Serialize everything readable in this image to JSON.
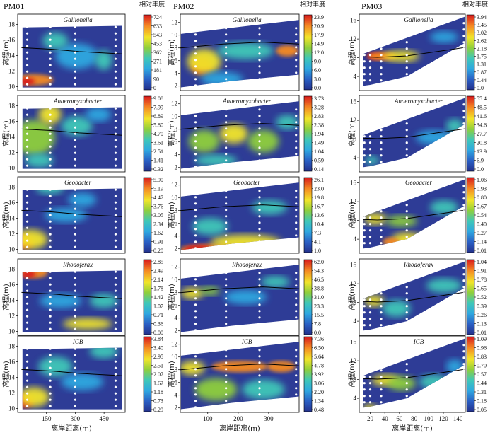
{
  "chart_data": {
    "type": "heatmap",
    "figure": "Contour maps of relative abundance of iron-cycling bacteria along three river-bank profiles",
    "xlabel": "离岸距离(m)",
    "ylabel": "高程(m)",
    "colorbar_title": "相对丰度",
    "colormap": [
      "#24318c",
      "#2a5fc4",
      "#2fa8e0",
      "#3fc7b8",
      "#8fcf3c",
      "#f2e52a",
      "#f58a23",
      "#d7191c"
    ],
    "profiles": [
      {
        "name": "PM01",
        "xlim": [
          0,
          560
        ],
        "xticks": [
          150,
          300,
          450
        ],
        "ylim": [
          9.5,
          19.3
        ],
        "yticks": [
          10,
          12,
          14,
          16,
          18
        ],
        "sampling_columns_x": [
          50,
          170,
          300,
          510
        ],
        "water_table": [
          [
            20,
            15.0
          ],
          [
            180,
            14.8
          ],
          [
            320,
            14.5
          ],
          [
            545,
            14.2
          ]
        ],
        "panels": [
          {
            "species": "Gallionella",
            "colorbar": [
              "724",
              "633",
              "543",
              "453",
              "362",
              "271",
              "181",
              "90",
              "0"
            ]
          },
          {
            "species": "Anaeromyxobacter",
            "colorbar": [
              "9.08",
              "7.99",
              "6.89",
              "5.80",
              "4.70",
              "3.61",
              "2.51",
              "1.41",
              "0.32"
            ]
          },
          {
            "species": "Geobacter",
            "colorbar": [
              "5.90",
              "5.19",
              "4.47",
              "3.76",
              "3.05",
              "2.34",
              "1.62",
              "0.91",
              "0.20"
            ]
          },
          {
            "species": "Rhodoferax",
            "colorbar": [
              "2.85",
              "2.49",
              "2.14",
              "1.78",
              "1.42",
              "1.07",
              "0.71",
              "0.36",
              "0.00"
            ]
          },
          {
            "species": "ICB",
            "colorbar": [
              "3.84",
              "3.40",
              "2.95",
              "2.51",
              "2.07",
              "1.62",
              "1.18",
              "0.73",
              "0.29"
            ]
          }
        ]
      },
      {
        "name": "PM02",
        "xlim": [
          10,
          400
        ],
        "xticks": [
          100,
          200,
          300
        ],
        "ylim": [
          1.3,
          13.3
        ],
        "yticks": [
          2,
          4,
          6,
          8,
          10,
          12
        ],
        "sampling_columns_x": [
          60,
          160,
          270,
          390
        ],
        "water_table": [
          [
            10,
            8.0
          ],
          [
            150,
            8.6
          ],
          [
            280,
            8.9
          ],
          [
            400,
            8.6
          ]
        ],
        "panels": [
          {
            "species": "Gallionella",
            "colorbar": [
              "23.9",
              "20.9",
              "17.9",
              "14.9",
              "12.0",
              "9.0",
              "6.0",
              "3.0",
              "0.0"
            ]
          },
          {
            "species": "Anaeromyxobacter",
            "colorbar": [
              "3.73",
              "3.28",
              "2.83",
              "2.38",
              "1.94",
              "1.49",
              "1.04",
              "0.59",
              "0.14"
            ]
          },
          {
            "species": "Geobacter",
            "colorbar": [
              "26.1",
              "23.0",
              "19.8",
              "16.7",
              "13.6",
              "10.4",
              "7.3",
              "4.1",
              "1.0"
            ]
          },
          {
            "species": "Rhodoferax",
            "colorbar": [
              "62.0",
              "54.3",
              "46.5",
              "38.8",
              "31.0",
              "23.3",
              "15.5",
              "7.8",
              "0.0"
            ]
          },
          {
            "species": "ICB",
            "colorbar": [
              "7.36",
              "6.50",
              "5.64",
              "4.78",
              "3.92",
              "3.06",
              "2.20",
              "1.34",
              "0.48"
            ]
          }
        ]
      },
      {
        "name": "PM03",
        "xlim": [
          5,
          150
        ],
        "xticks": [
          20,
          40,
          60,
          80,
          100,
          120,
          140
        ],
        "ylim": [
          1,
          17.3
        ],
        "yticks": [
          4,
          8,
          12,
          16
        ],
        "sampling_columns_x": [
          12,
          20,
          35,
          70,
          148
        ],
        "water_table": [
          [
            10,
            8.2
          ],
          [
            30,
            8.1
          ],
          [
            70,
            8.4
          ],
          [
            150,
            10.2
          ]
        ],
        "panels": [
          {
            "species": "Gallionella",
            "colorbar": [
              "3.94",
              "3.45",
              "3.02",
              "2.62",
              "2.18",
              "1.75",
              "1.31",
              "0.87",
              "0.44",
              "0.0"
            ]
          },
          {
            "species": "Anaeromyxobacter",
            "colorbar": [
              "55.4",
              "48.5",
              "41.6",
              "34.6",
              "27.7",
              "20.8",
              "13.9",
              "6.9",
              "0.0"
            ]
          },
          {
            "species": "Geobacter",
            "colorbar": [
              "1.06",
              "0.93",
              "0.80",
              "0.67",
              "0.54",
              "0.40",
              "0.27",
              "0.14",
              "0.01"
            ]
          },
          {
            "species": "Rhodoferax",
            "colorbar": [
              "1.04",
              "0.91",
              "0.78",
              "0.65",
              "0.52",
              "0.39",
              "0.26",
              "0.13",
              "0.01"
            ]
          },
          {
            "species": "ICB",
            "colorbar": [
              "1.09",
              "0.96",
              "0.83",
              "0.70",
              "0.57",
              "0.44",
              "0.31",
              "0.18",
              "0.05"
            ]
          }
        ]
      }
    ]
  }
}
